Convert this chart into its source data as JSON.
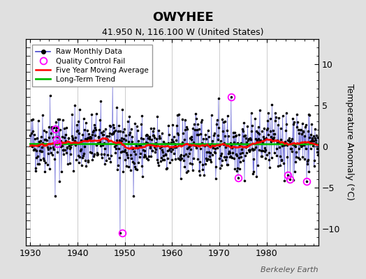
{
  "title": "OWYHEE",
  "subtitle": "41.950 N, 116.100 W (United States)",
  "ylabel": "Temperature Anomaly (°C)",
  "watermark": "Berkeley Earth",
  "xlim": [
    1929,
    1991
  ],
  "ylim": [
    -12,
    13
  ],
  "yticks": [
    -10,
    -5,
    0,
    5,
    10
  ],
  "xticks": [
    1930,
    1940,
    1950,
    1960,
    1970,
    1980
  ],
  "year_start": 1930,
  "year_end": 1990,
  "bg_color": "#e0e0e0",
  "plot_bg_color": "#ffffff",
  "raw_line_color": "#4444cc",
  "raw_dot_color": "#000000",
  "moving_avg_color": "#ff0000",
  "trend_color": "#00bb00",
  "qc_fail_color": "#ff00ff",
  "seed": 42,
  "qc_fails": [
    [
      1935.2,
      2.1
    ],
    [
      1935.5,
      0.8
    ],
    [
      1935.7,
      0.3
    ],
    [
      1949.5,
      -10.5
    ],
    [
      1972.5,
      6.0
    ],
    [
      1974.0,
      -3.8
    ],
    [
      1984.5,
      -3.5
    ],
    [
      1985.0,
      -4.0
    ],
    [
      1988.5,
      -4.2
    ]
  ]
}
